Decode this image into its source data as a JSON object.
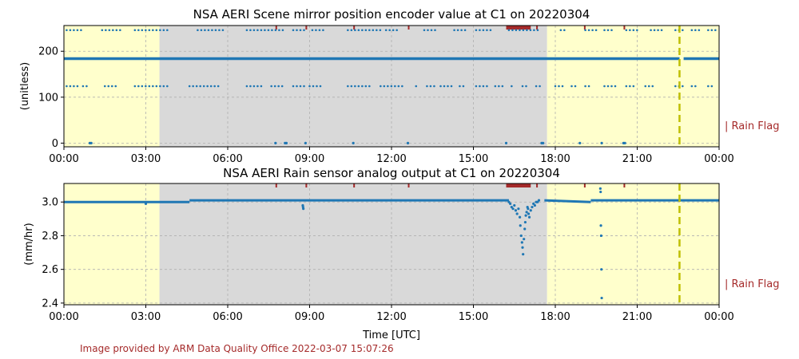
{
  "footer_text": "Image provided by ARM Data Quality Office 2022-03-07 15:07:26",
  "colors": {
    "night": "#ffffcc",
    "day": "#d9d9d9",
    "data": "#1f77b4",
    "rain_flag": "#a52a2a",
    "event_line": "#bfbf00",
    "grid": "#b0b0b0"
  },
  "chart_data": [
    {
      "type": "scatter",
      "title": "NSA AERI Scene mirror position encoder value at C1 on 20220304",
      "xlabel": "",
      "ylabel": "(unitless)",
      "xlim": [
        0,
        24
      ],
      "ylim": [
        -8,
        256
      ],
      "x_tick_values": [
        0,
        3,
        6,
        9,
        12,
        15,
        18,
        21,
        24
      ],
      "x_tick_labels": [
        "00:00",
        "03:00",
        "06:00",
        "09:00",
        "12:00",
        "15:00",
        "18:00",
        "21:00",
        "00:00"
      ],
      "y_ticks": [
        0,
        100,
        200
      ],
      "y_tick_labels": [
        "0",
        "100",
        "200"
      ],
      "grid": true,
      "side_label": "| Rain Flag",
      "shading": [
        {
          "kind": "night",
          "start": 0,
          "end": 3.5
        },
        {
          "kind": "day",
          "start": 3.5,
          "end": 17.7
        },
        {
          "kind": "night",
          "start": 17.7,
          "end": 24
        }
      ],
      "event_line_x": 22.55,
      "rain_flag_spans": [
        [
          7.75,
          7.8
        ],
        [
          8.85,
          8.9
        ],
        [
          10.6,
          10.65
        ],
        [
          12.6,
          12.65
        ],
        [
          16.2,
          17.1
        ],
        [
          17.3,
          17.35
        ],
        [
          19.05,
          19.1
        ],
        [
          20.5,
          20.55
        ]
      ],
      "series": [
        {
          "level": 184,
          "pattern": "continuous",
          "ranges": [
            [
              0,
              22.55
            ],
            [
              22.7,
              24
            ]
          ]
        },
        {
          "level": 246,
          "pattern": "dots",
          "ranges": [
            [
              0.1,
              0.7
            ],
            [
              1.4,
              2.1
            ],
            [
              2.6,
              3.8
            ],
            [
              4.9,
              5.9
            ],
            [
              6.7,
              8.1
            ],
            [
              8.4,
              8.8
            ],
            [
              9.1,
              9.5
            ],
            [
              10.4,
              11.6
            ],
            [
              11.8,
              12.3
            ],
            [
              13.2,
              13.7
            ],
            [
              14.3,
              14.7
            ],
            [
              15.1,
              15.7
            ],
            [
              16.3,
              17.4
            ],
            [
              18.2,
              18.4
            ],
            [
              19.1,
              19.5
            ],
            [
              19.8,
              20.1
            ],
            [
              20.6,
              21.1
            ],
            [
              21.5,
              21.9
            ],
            [
              22.4,
              22.7
            ],
            [
              23.0,
              23.3
            ],
            [
              23.6,
              23.9
            ]
          ]
        },
        {
          "level": 124,
          "pattern": "dots",
          "ranges": [
            [
              0.1,
              0.5
            ],
            [
              0.7,
              0.9
            ],
            [
              1.5,
              2.0
            ],
            [
              2.6,
              3.8
            ],
            [
              4.6,
              5.7
            ],
            [
              6.7,
              7.3
            ],
            [
              7.6,
              8.0
            ],
            [
              8.4,
              8.8
            ],
            [
              9.0,
              9.5
            ],
            [
              10.4,
              11.3
            ],
            [
              11.6,
              12.4
            ],
            [
              12.9,
              13.0
            ],
            [
              13.3,
              13.6
            ],
            [
              13.8,
              14.2
            ],
            [
              14.5,
              14.7
            ],
            [
              15.1,
              15.6
            ],
            [
              15.8,
              16.1
            ],
            [
              16.4,
              16.5
            ],
            [
              16.8,
              17.0
            ],
            [
              17.3,
              17.5
            ],
            [
              18.0,
              18.3
            ],
            [
              18.6,
              18.8
            ],
            [
              19.1,
              19.3
            ],
            [
              19.8,
              20.3
            ],
            [
              20.6,
              20.9
            ],
            [
              21.3,
              21.6
            ],
            [
              22.4,
              22.7
            ],
            [
              23.0,
              23.2
            ],
            [
              23.6,
              23.8
            ]
          ]
        },
        {
          "level": 0,
          "pattern": "points",
          "x": [
            0.95,
            1.0,
            7.75,
            8.1,
            8.15,
            8.85,
            10.6,
            12.6,
            16.2,
            17.5,
            17.55,
            18.9,
            19.7,
            20.5,
            20.55
          ]
        }
      ]
    },
    {
      "type": "scatter",
      "title": "NSA AERI Rain sensor analog output at C1 on 20220304",
      "xlabel": "Time [UTC]",
      "ylabel": "(mm/hr)",
      "xlim": [
        0,
        24
      ],
      "ylim": [
        2.39,
        3.11
      ],
      "x_tick_values": [
        0,
        3,
        6,
        9,
        12,
        15,
        18,
        21,
        24
      ],
      "x_tick_labels": [
        "00:00",
        "03:00",
        "06:00",
        "09:00",
        "12:00",
        "15:00",
        "18:00",
        "21:00",
        "00:00"
      ],
      "y_ticks": [
        2.4,
        2.6,
        2.8,
        3.0
      ],
      "y_tick_labels": [
        "2.4",
        "2.6",
        "2.8",
        "3.0"
      ],
      "grid": true,
      "side_label": "| Rain Flag",
      "shading": [
        {
          "kind": "night",
          "start": 0,
          "end": 3.5
        },
        {
          "kind": "day",
          "start": 3.5,
          "end": 17.7
        },
        {
          "kind": "night",
          "start": 17.7,
          "end": 24
        }
      ],
      "event_line_x": 22.55,
      "rain_flag_spans": [
        [
          7.75,
          7.8
        ],
        [
          8.85,
          8.9
        ],
        [
          10.6,
          10.65
        ],
        [
          12.6,
          12.65
        ],
        [
          16.2,
          17.1
        ],
        [
          17.3,
          17.35
        ],
        [
          19.05,
          19.1
        ],
        [
          20.5,
          20.55
        ]
      ],
      "series": [
        {
          "pattern": "baseline",
          "segments": [
            [
              0,
              3.0,
              4.6,
              3.0
            ],
            [
              4.6,
              3.01,
              16.3,
              3.01
            ],
            [
              17.6,
              3.01,
              19.3,
              3.0
            ],
            [
              19.3,
              3.01,
              24,
              3.01
            ]
          ]
        },
        {
          "pattern": "points",
          "x": [
            3.0,
            8.75,
            8.76,
            8.77,
            16.3,
            16.35,
            16.4,
            16.45,
            16.5,
            16.55,
            16.6,
            16.65,
            16.7,
            16.72,
            16.75,
            16.78,
            16.8,
            16.82,
            16.85,
            16.88,
            16.9,
            16.92,
            16.95,
            16.98,
            17.0,
            17.02,
            17.05,
            17.1,
            17.15,
            17.2,
            17.25,
            17.3,
            17.35,
            17.4,
            19.65,
            19.66,
            19.67,
            19.68,
            19.69,
            19.7
          ],
          "y": [
            2.99,
            2.98,
            2.97,
            2.96,
            3.0,
            2.99,
            2.97,
            2.96,
            2.98,
            2.95,
            2.93,
            2.96,
            2.91,
            2.86,
            2.8,
            2.76,
            2.73,
            2.69,
            2.78,
            2.84,
            2.88,
            2.92,
            2.94,
            2.97,
            2.96,
            2.93,
            2.91,
            2.95,
            2.97,
            2.99,
            2.98,
            3.0,
            3.0,
            3.01,
            3.08,
            3.06,
            2.86,
            2.8,
            2.6,
            2.43
          ]
        }
      ]
    }
  ]
}
